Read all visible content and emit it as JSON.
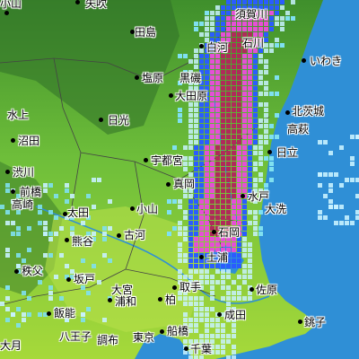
{
  "map": {
    "cities": [
      {
        "name": "小山",
        "id": "oyama-top"
      },
      {
        "name": "矢吹"
      },
      {
        "name": "須賀川"
      },
      {
        "name": "田島"
      },
      {
        "name": "白河"
      },
      {
        "name": "石川"
      },
      {
        "name": "いわき"
      },
      {
        "name": "塩原"
      },
      {
        "name": "黒磯"
      },
      {
        "name": "大田原"
      },
      {
        "name": "水上"
      },
      {
        "name": "日光"
      },
      {
        "name": "北茨城"
      },
      {
        "name": "高萩"
      },
      {
        "name": "沼田"
      },
      {
        "name": "日立"
      },
      {
        "name": "宇都宮"
      },
      {
        "name": "渋川"
      },
      {
        "name": "前橋"
      },
      {
        "name": "真岡"
      },
      {
        "name": "高崎"
      },
      {
        "name": "水戸"
      },
      {
        "name": "太田"
      },
      {
        "name": "小山"
      },
      {
        "name": "大洗"
      },
      {
        "name": "熊谷"
      },
      {
        "name": "古河"
      },
      {
        "name": "石岡"
      },
      {
        "name": "秩父"
      },
      {
        "name": "土浦"
      },
      {
        "name": "坂戸"
      },
      {
        "name": "大宮"
      },
      {
        "name": "取手"
      },
      {
        "name": "浦和"
      },
      {
        "name": "佐原"
      },
      {
        "name": "柏"
      },
      {
        "name": "飯能"
      },
      {
        "name": "成田"
      },
      {
        "name": "八王子"
      },
      {
        "name": "調布"
      },
      {
        "name": "東京"
      },
      {
        "name": "船橋"
      },
      {
        "name": "銚子"
      },
      {
        "name": "大月"
      },
      {
        "name": "千葉"
      }
    ],
    "colors": {
      "sea": "#2f8fd6",
      "land_low": "#a6d93a",
      "land_mid": "#6fbf3a",
      "land_high": "#3f8f2c",
      "mountain_dark": "#2f6f28",
      "rain_light": "#c8f2ff",
      "rain_weak": "#7fe0f0",
      "rain_moderate": "#2a5cff",
      "rain_strong": "#e64fd6",
      "rain_heavy": "#b02a5a"
    }
  }
}
